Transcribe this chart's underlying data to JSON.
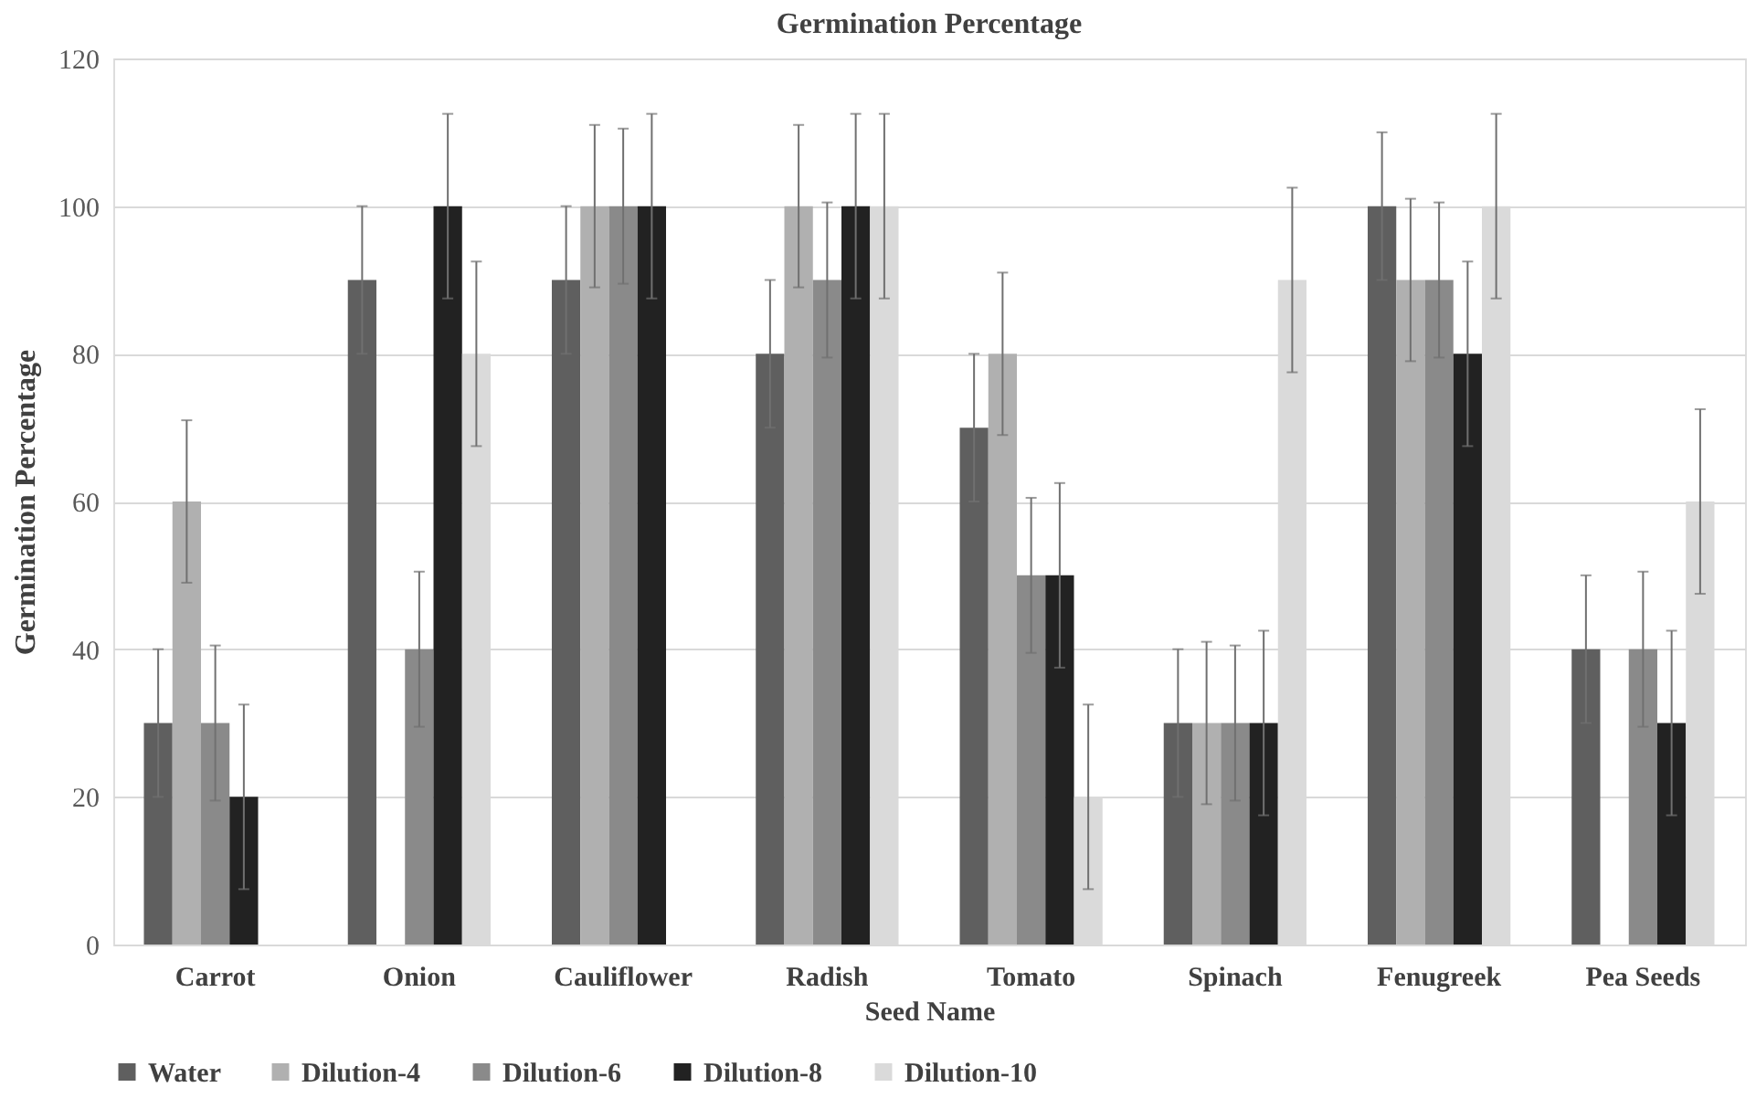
{
  "chart_data": {
    "type": "bar",
    "title": "Germination Percentage",
    "xlabel": "Seed Name",
    "ylabel": "Germination  Percentage",
    "categories": [
      "Carrot",
      "Onion",
      "Cauliflower",
      "Radish",
      "Tomato",
      "Spinach",
      "Fenugreek",
      "Pea Seeds"
    ],
    "series": [
      {
        "name": "Water",
        "color": "#5f5f5f",
        "values": [
          30,
          90,
          90,
          80,
          70,
          30,
          100,
          40
        ],
        "errors": [
          10,
          10,
          10,
          10,
          10,
          10,
          10,
          10
        ]
      },
      {
        "name": "Dilution-4",
        "color": "#b0b0b0",
        "values": [
          60,
          null,
          100,
          100,
          80,
          30,
          90,
          null
        ],
        "errors": [
          11,
          null,
          11,
          11,
          11,
          11,
          11,
          null
        ]
      },
      {
        "name": "Dilution-6",
        "color": "#8a8a8a",
        "values": [
          30,
          40,
          100,
          90,
          50,
          30,
          90,
          40
        ],
        "errors": [
          10.5,
          10.5,
          10.5,
          10.5,
          10.5,
          10.5,
          10.5,
          10.5
        ]
      },
      {
        "name": "Dilution-8",
        "color": "#222222",
        "values": [
          20,
          100,
          100,
          100,
          50,
          30,
          80,
          30
        ],
        "errors": [
          12.5,
          12.5,
          12.5,
          12.5,
          12.5,
          12.5,
          12.5,
          12.5
        ]
      },
      {
        "name": "Dilution-10",
        "color": "#dadada",
        "values": [
          null,
          80,
          null,
          100,
          20,
          90,
          100,
          60
        ],
        "errors": [
          null,
          12.5,
          null,
          12.5,
          12.5,
          12.5,
          12.5,
          12.5
        ]
      }
    ],
    "ylim": [
      0,
      120
    ],
    "yticks": [
      0,
      20,
      40,
      60,
      80,
      100,
      120
    ],
    "grid": "y",
    "legend": "bottom"
  }
}
